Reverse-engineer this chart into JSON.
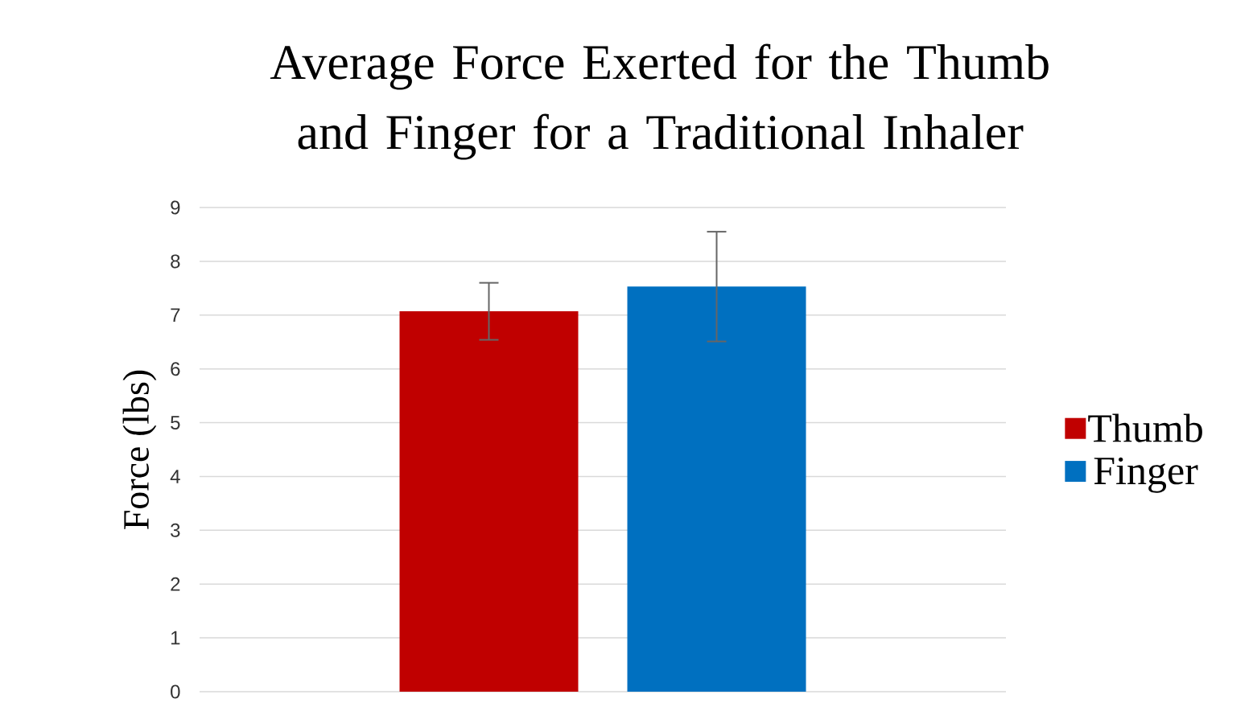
{
  "chart_data": {
    "type": "bar",
    "title": "Average Force Exerted for the Thumb and Finger for a Traditional Inhaler",
    "ylabel": "Force (lbs)",
    "categories": [
      null
    ],
    "series": [
      {
        "name": "Thumb",
        "color": "#c00000",
        "values": [
          7.07
        ],
        "errors": [
          0.53
        ]
      },
      {
        "name": "Finger",
        "color": "#0070c0",
        "values": [
          7.53
        ],
        "errors": [
          1.02
        ]
      }
    ],
    "ylim": [
      0,
      9
    ],
    "yticks": [
      0,
      1,
      2,
      3,
      4,
      5,
      6,
      7,
      8,
      9
    ],
    "grid": "y",
    "legend": "right"
  }
}
